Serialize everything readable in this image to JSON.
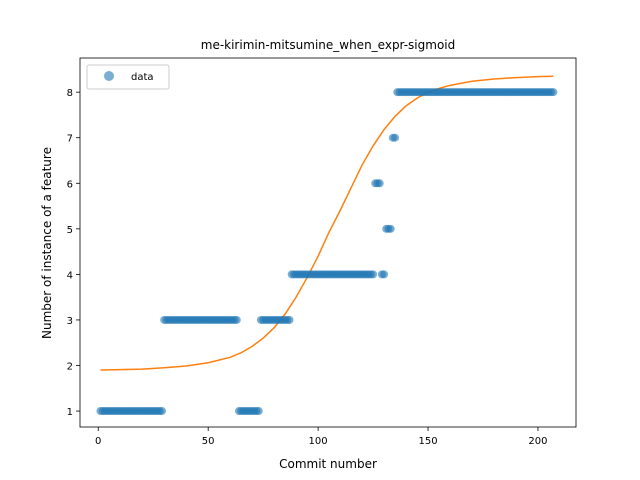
{
  "chart_data": {
    "type": "scatter",
    "title": "me-kirimin-mitsumine_when_expr-sigmoid",
    "xlabel": "Commit number",
    "ylabel": "Number of instance of a feature",
    "xlim": [
      -8.3,
      217.3
    ],
    "ylim": [
      0.65,
      8.75
    ],
    "xticks": [
      0,
      50,
      100,
      150,
      200
    ],
    "yticks": [
      1,
      2,
      3,
      4,
      5,
      6,
      7,
      8
    ],
    "grid": false,
    "legend": {
      "position": "top-left",
      "entries": [
        "data"
      ]
    },
    "colors": {
      "data": "#1f77b4",
      "fit": "#ff7f0e"
    },
    "series": [
      {
        "name": "data",
        "kind": "scatter",
        "segments": [
          {
            "x_start": 1,
            "x_end": 29,
            "y": 1
          },
          {
            "x_start": 30,
            "x_end": 63,
            "y": 3
          },
          {
            "x_start": 64,
            "x_end": 73,
            "y": 1
          },
          {
            "x_start": 74,
            "x_end": 87,
            "y": 3
          },
          {
            "x_start": 88,
            "x_end": 125,
            "y": 4
          },
          {
            "x_start": 126,
            "x_end": 128,
            "y": 6
          },
          {
            "x_start": 129,
            "x_end": 130,
            "y": 4
          },
          {
            "x_start": 131,
            "x_end": 133,
            "y": 5
          },
          {
            "x_start": 134,
            "x_end": 135,
            "y": 7
          },
          {
            "x_start": 136,
            "x_end": 207,
            "y": 8
          }
        ]
      },
      {
        "kind": "line",
        "x": [
          1,
          10,
          20,
          30,
          40,
          50,
          60,
          65,
          70,
          75,
          80,
          85,
          90,
          95,
          100,
          105,
          110,
          115,
          120,
          125,
          130,
          135,
          140,
          145,
          150,
          155,
          160,
          170,
          180,
          190,
          200,
          207
        ],
        "y": [
          1.9,
          1.91,
          1.92,
          1.95,
          1.99,
          2.06,
          2.18,
          2.28,
          2.42,
          2.6,
          2.83,
          3.13,
          3.5,
          3.93,
          4.4,
          4.93,
          5.4,
          5.9,
          6.4,
          6.82,
          7.18,
          7.47,
          7.7,
          7.87,
          8.0,
          8.08,
          8.15,
          8.24,
          8.29,
          8.32,
          8.34,
          8.35
        ]
      }
    ]
  }
}
